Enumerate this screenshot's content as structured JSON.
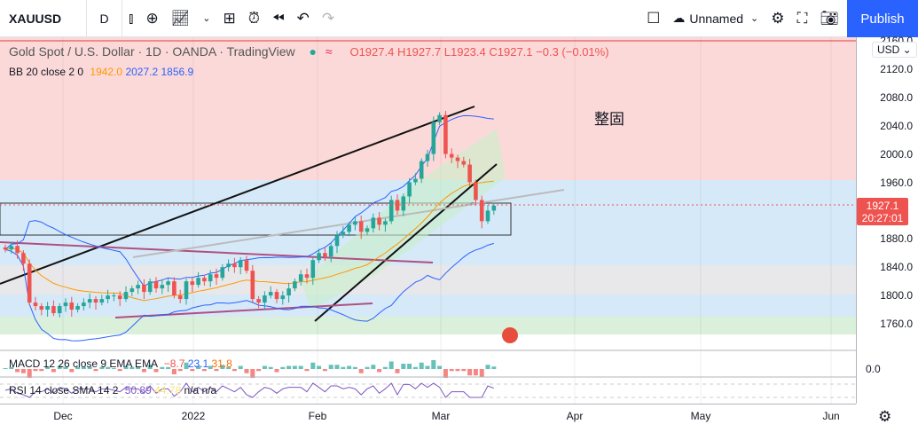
{
  "toolbar": {
    "symbol": "XAUUSD",
    "interval": "D",
    "layout_name": "Unnamed",
    "publish": "Publish",
    "icons": [
      "candles-icon",
      "add-indicator-icon",
      "indicators-icon",
      "chevron-down-icon",
      "templates-icon",
      "alert-icon",
      "replay-icon",
      "undo-icon",
      "redo-icon",
      "fullscreen-checkbox-icon",
      "cloud-icon",
      "chevron-down-icon",
      "settings-icon",
      "fullscreen-icon",
      "camera-icon"
    ]
  },
  "legend": {
    "title": "Gold Spot / U.S. Dollar · 1D · OANDA · TradingView",
    "o": "O1927.4",
    "h": "H1927.7",
    "l": "L1923.4",
    "c": "C1927.1",
    "chg": "−0.3 (−0.01%)"
  },
  "bb": {
    "label": "BB 20 close 2 0",
    "basis": "1942.0",
    "upper": "2027.2",
    "lower": "1856.9"
  },
  "macd": {
    "label": "MACD 12 26 close 9 EMA EMA",
    "v1": "−8.7",
    "v2": "23.1",
    "v3": "31.8"
  },
  "rsi": {
    "label": "RSI 14 close SMA 14 2",
    "v1": "50.89",
    "v2": "44.78",
    "v3": "n/a",
    "v4": "n/a"
  },
  "annotation": "整固",
  "price_axis": {
    "currency": "USD",
    "labels": [
      "2160.0",
      "2120.0",
      "2080.0",
      "2040.0",
      "2000.0",
      "1960.0",
      "1880.0",
      "1840.0",
      "1800.0",
      "1760.0"
    ],
    "macd_zero": "0.0",
    "current_price": "1927.1",
    "countdown": "20:27:01"
  },
  "time_axis": [
    "Dec",
    "2022",
    "Feb",
    "Mar",
    "Apr",
    "May",
    "Jun"
  ],
  "colors": {
    "up": "#26a69a",
    "down": "#ef5350",
    "accent": "#2962ff"
  },
  "chart_data": {
    "type": "candlestick",
    "ylim": [
      1740,
      2170
    ],
    "closes": [
      1865,
      1870,
      1860,
      1845,
      1790,
      1785,
      1780,
      1785,
      1775,
      1785,
      1790,
      1780,
      1785,
      1790,
      1795,
      1790,
      1795,
      1800,
      1800,
      1795,
      1805,
      1810,
      1815,
      1805,
      1820,
      1810,
      1815,
      1820,
      1800,
      1795,
      1820,
      1815,
      1825,
      1820,
      1830,
      1825,
      1840,
      1845,
      1840,
      1850,
      1835,
      1795,
      1790,
      1800,
      1805,
      1795,
      1800,
      1810,
      1820,
      1830,
      1825,
      1850,
      1860,
      1855,
      1870,
      1885,
      1890,
      1900,
      1905,
      1890,
      1895,
      1910,
      1900,
      1905,
      1935,
      1920,
      1940,
      1960,
      1965,
      1990,
      2000,
      2045,
      2055,
      2000,
      1995,
      1990,
      1985,
      1960,
      1935,
      1905,
      1920,
      1927
    ]
  }
}
